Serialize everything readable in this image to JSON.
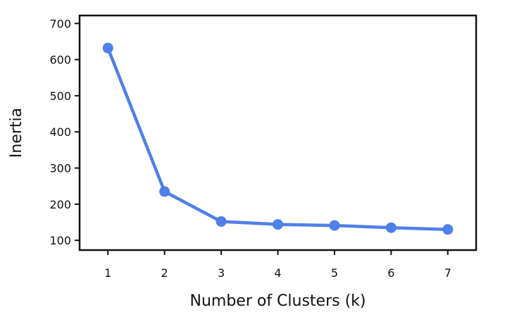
{
  "chart_data": {
    "type": "line",
    "title": "",
    "xlabel": "Number of Clusters (k)",
    "ylabel": "Inertia",
    "x": [
      1,
      2,
      3,
      4,
      5,
      6,
      7
    ],
    "series": [
      {
        "values": [
          632,
          235,
          152,
          144,
          141,
          135,
          130
        ],
        "color": "#4f7fe8"
      }
    ],
    "xlim": [
      0.5,
      7.5
    ],
    "ylim": [
      73,
      722
    ],
    "xticks": [
      1,
      2,
      3,
      4,
      5,
      6,
      7
    ],
    "yticks": [
      100,
      200,
      300,
      400,
      500,
      600,
      700
    ],
    "grid": false,
    "legend": "none"
  }
}
